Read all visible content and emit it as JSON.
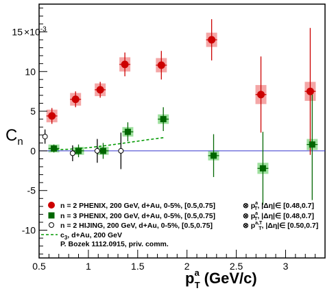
{
  "chart_data": {
    "type": "scatter",
    "x_unit_label": "(GeV/c)",
    "y_exponent_label": "×10",
    "y_exponent_power": "-3",
    "xlim": [
      0.5,
      3.4
    ],
    "ylim": [
      -13.5,
      18.5
    ],
    "x_ticks": [
      "0.5",
      "1",
      "1.5",
      "2",
      "2.5",
      "3"
    ],
    "x_tick_values": [
      0.5,
      1.0,
      1.5,
      2.0,
      2.5,
      3.0
    ],
    "y_ticks": [
      "-10",
      "-5",
      "0",
      "5",
      "10",
      "15"
    ],
    "y_tick_values": [
      -10,
      -5,
      0,
      5,
      10,
      15
    ],
    "zero_line_color": "#3333cc",
    "series": [
      {
        "key": "phenix_n2",
        "name": "n = 2 PHENIX, 200 GeV, d+Au, 0-5%, [0.5,0.75]",
        "marker": "filled-circle",
        "color": "#cc0000",
        "syst_color": "#f4a6a6",
        "points": [
          {
            "x": 0.63,
            "y": 4.4,
            "err": 1.0,
            "sys": 0.8
          },
          {
            "x": 0.87,
            "y": 6.5,
            "err": 1.0,
            "sys": 0.8
          },
          {
            "x": 1.12,
            "y": 7.7,
            "err": 1.0,
            "sys": 0.8
          },
          {
            "x": 1.37,
            "y": 10.9,
            "err": 1.5,
            "sys": 0.9
          },
          {
            "x": 1.74,
            "y": 10.8,
            "err": 1.8,
            "sys": 0.9
          },
          {
            "x": 2.25,
            "y": 14.0,
            "err": 2.6,
            "sys": 0.9
          },
          {
            "x": 2.75,
            "y": 7.1,
            "err": 4.8,
            "sys": 1.2
          },
          {
            "x": 3.25,
            "y": 7.5,
            "err": 8.0,
            "sys": 1.2
          }
        ]
      },
      {
        "key": "phenix_n3",
        "name": "n = 3 PHENIX, 200 GeV, d+Au, 0-5%, [0.5,0.75]",
        "marker": "filled-square",
        "color": "#006600",
        "syst_color": "#9fe09f",
        "points": [
          {
            "x": 0.65,
            "y": 0.3,
            "err": 0.5,
            "sys": 0.5
          },
          {
            "x": 0.9,
            "y": 0.0,
            "err": 0.8,
            "sys": 0.5
          },
          {
            "x": 1.15,
            "y": 0.0,
            "err": 1.0,
            "sys": 0.5
          },
          {
            "x": 1.4,
            "y": 2.4,
            "err": 1.2,
            "sys": 0.6
          },
          {
            "x": 1.76,
            "y": 4.0,
            "err": 1.5,
            "sys": 0.6
          },
          {
            "x": 2.27,
            "y": -0.6,
            "err": 2.7,
            "sys": 0.6
          },
          {
            "x": 2.77,
            "y": -2.2,
            "err": 4.6,
            "sys": 0.7
          },
          {
            "x": 3.27,
            "y": 0.8,
            "err": 7.0,
            "sys": 0.7
          }
        ]
      },
      {
        "key": "hijing_n2",
        "name": "n = 2 HIJING, 200 GeV, d+Au, 0-5%, [0.5,0.75]",
        "marker": "open-circle",
        "color": "#000000",
        "points": [
          {
            "x": 0.56,
            "y": 1.8,
            "err": 0.9
          },
          {
            "x": 0.84,
            "y": -0.3,
            "err": 1.0
          },
          {
            "x": 1.09,
            "y": 0.0,
            "err": 1.5
          },
          {
            "x": 1.33,
            "y": 0.0,
            "err": 2.3
          }
        ]
      },
      {
        "key": "bozek_c3",
        "name": "c₃, d+Au, 200 GeV",
        "marker": "dashed-line",
        "color": "#009900",
        "points": [
          {
            "x": 0.62,
            "y": 0.15
          },
          {
            "x": 0.8,
            "y": 0.2
          },
          {
            "x": 1.0,
            "y": 0.4
          },
          {
            "x": 1.2,
            "y": 0.7
          },
          {
            "x": 1.4,
            "y": 1.05
          },
          {
            "x": 1.6,
            "y": 1.4
          },
          {
            "x": 1.78,
            "y": 1.7
          }
        ]
      }
    ],
    "legend_placement": "bottom-left",
    "legend": [
      {
        "marker": "filled-circle",
        "color": "#cc0000",
        "text": "n = 2 PHENIX, 200 GeV, d+Au, 0-5%, [0.5,0.75]",
        "right": "⊗ p",
        "right_sub": "T",
        "right_sup": "a",
        "right_tail": ", |Δη|∈ [0.48,0.7]"
      },
      {
        "marker": "filled-square",
        "color": "#006600",
        "text": "n = 3 PHENIX, 200 GeV, d+Au, 0-5%, [0.5,0.75]",
        "right": "⊗ p",
        "right_sub": "T",
        "right_sup": "a",
        "right_tail": ", |Δη|∈ [0.48,0.7]"
      },
      {
        "marker": "open-circle",
        "color": "#000000",
        "text": "n = 2 HIJING, 200 GeV, d+Au, 0-5%, [0.5,0.75]",
        "right": "⊗ p",
        "right_sub": "T",
        "right_sup": "a,T",
        "right_tail": ", |Δη|∈ [0.50,0.7]"
      },
      {
        "marker": "dashed-line",
        "color": "#009900",
        "text": "c",
        "text_sub": "3",
        "text_tail": ", d+Au, 200 GeV"
      },
      {
        "marker": "none",
        "color": "#000000",
        "text": "P. Bozek 1112.0915, priv. comm."
      }
    ],
    "y_label": "C",
    "y_label_sub": "n",
    "x_label": "p",
    "x_label_sub": "T",
    "x_label_sup": "a"
  }
}
